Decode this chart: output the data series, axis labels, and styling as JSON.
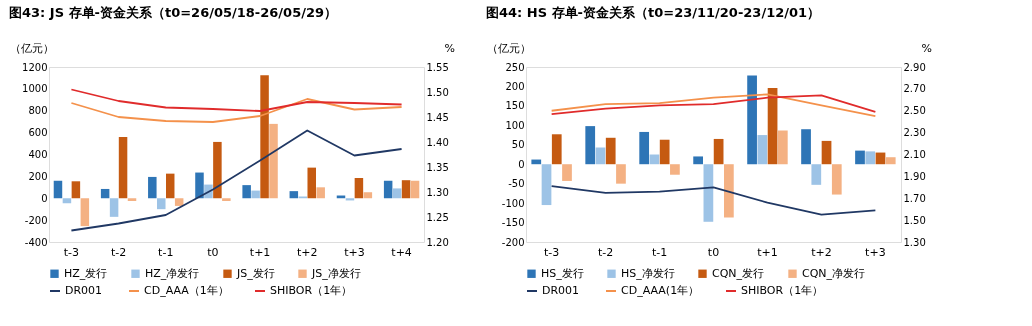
{
  "chart_data": [
    {
      "type": "bar",
      "title": "图43:  JS 存单-资金关系（t0=26/05/18-26/05/29）",
      "ylabel": "（亿元）",
      "y2label": "%",
      "categories": [
        "t-3",
        "t-2",
        "t-1",
        "t0",
        "t+1",
        "t+2",
        "t+3",
        "t+4"
      ],
      "series": [
        {
          "name": "HZ_发行",
          "color": "#2e75b6",
          "values": [
            160,
            85,
            195,
            235,
            120,
            65,
            25,
            160
          ]
        },
        {
          "name": "HZ_净发行",
          "color": "#9dc3e6",
          "values": [
            -45,
            -170,
            -100,
            125,
            70,
            15,
            -20,
            90
          ]
        },
        {
          "name": "JS_发行",
          "color": "#c55a11",
          "values": [
            155,
            560,
            225,
            515,
            1125,
            280,
            185,
            165
          ]
        },
        {
          "name": "JS_净发行",
          "color": "#f4b183",
          "values": [
            -255,
            -25,
            -70,
            -25,
            680,
            100,
            55,
            160
          ]
        },
        {
          "name": "DR001",
          "type": "line",
          "axis": "y2",
          "color": "#203864",
          "values": [
            1.223,
            1.237,
            1.254,
            1.305,
            1.363,
            1.423,
            1.373,
            1.386
          ]
        },
        {
          "name": "CD_AAA（1年）",
          "type": "line",
          "axis": "y2",
          "color": "#f4914b",
          "values": [
            1.478,
            1.45,
            1.442,
            1.44,
            1.452,
            1.486,
            1.465,
            1.47
          ]
        },
        {
          "name": "SHIBOR（1年）",
          "type": "line",
          "axis": "y2",
          "color": "#e02b2b",
          "values": [
            1.505,
            1.482,
            1.469,
            1.466,
            1.462,
            1.48,
            1.478,
            1.475
          ]
        }
      ],
      "ylim": [
        -400,
        1200
      ],
      "yticks": [
        -400,
        -200,
        0,
        200,
        400,
        600,
        800,
        1000,
        1200
      ],
      "y2lim": [
        1.2,
        1.55
      ],
      "y2ticks": [
        {
          "value": 1.2,
          "label": "1.20"
        },
        {
          "value": 1.25,
          "label": "1.25"
        },
        {
          "value": 1.3,
          "label": "1.30"
        },
        {
          "value": 1.35,
          "label": "1.35"
        },
        {
          "value": 1.4,
          "label": "1.40"
        },
        {
          "value": 1.45,
          "label": "1.45"
        },
        {
          "value": 1.5,
          "label": "1.50"
        },
        {
          "value": 1.55,
          "label": "1.55"
        }
      ],
      "grid": false,
      "legend": "bottom",
      "marker": "none",
      "line_style": "solid"
    },
    {
      "type": "bar",
      "title": "图44:  HS 存单-资金关系（t0=23/11/20-23/12/01）",
      "ylabel": "（亿元）",
      "y2label": "%",
      "categories": [
        "t-3",
        "t-2",
        "t-1",
        "t0",
        "t+1",
        "t+2",
        "t+3"
      ],
      "series": [
        {
          "name": "HS_发行",
          "color": "#2e75b6",
          "values": [
            12,
            98,
            83,
            20,
            228,
            90,
            35
          ]
        },
        {
          "name": "HS_净发行",
          "color": "#9dc3e6",
          "values": [
            -105,
            43,
            25,
            -148,
            75,
            -53,
            33
          ]
        },
        {
          "name": "CQN_发行",
          "color": "#c55a11",
          "values": [
            77,
            68,
            63,
            65,
            196,
            60,
            30
          ]
        },
        {
          "name": "CQN_净发行",
          "color": "#f4b183",
          "values": [
            -43,
            -50,
            -27,
            -137,
            87,
            -78,
            18
          ]
        },
        {
          "name": "DR001",
          "type": "line",
          "axis": "y2",
          "color": "#203864",
          "values": [
            1.81,
            1.75,
            1.76,
            1.8,
            1.66,
            1.55,
            1.59
          ]
        },
        {
          "name": "CD_AAA(1年）",
          "type": "line",
          "axis": "y2",
          "color": "#f4914b",
          "values": [
            2.5,
            2.56,
            2.57,
            2.62,
            2.65,
            2.55,
            2.45
          ]
        },
        {
          "name": "SHIBOR（1年）",
          "type": "line",
          "axis": "y2",
          "color": "#e02b2b",
          "values": [
            2.47,
            2.52,
            2.55,
            2.56,
            2.62,
            2.64,
            2.49
          ]
        }
      ],
      "ylim": [
        -200,
        250
      ],
      "yticks": [
        -200,
        -150,
        -100,
        -50,
        0,
        50,
        100,
        150,
        200,
        250
      ],
      "y2lim": [
        1.3,
        2.9
      ],
      "y2ticks": [
        {
          "value": 1.3,
          "label": "1.30"
        },
        {
          "value": 1.5,
          "label": "1.50"
        },
        {
          "value": 1.7,
          "label": "1.70"
        },
        {
          "value": 1.9,
          "label": "1.90"
        },
        {
          "value": 2.1,
          "label": "2.10"
        },
        {
          "value": 2.3,
          "label": "2.30"
        },
        {
          "value": 2.5,
          "label": "2.50"
        },
        {
          "value": 2.7,
          "label": "2.70"
        },
        {
          "value": 2.9,
          "label": "2.90"
        }
      ],
      "grid": false,
      "legend": "bottom",
      "marker": "none",
      "line_style": "solid"
    }
  ]
}
